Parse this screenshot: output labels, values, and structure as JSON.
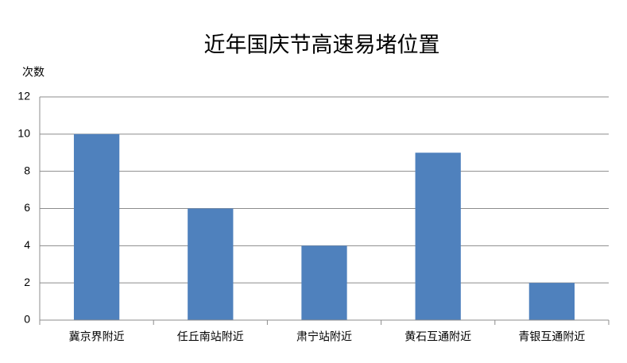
{
  "chart_data": {
    "type": "bar",
    "title": "近年国庆节高速易堵位置",
    "y_label": "次数",
    "categories": [
      "冀京界附近",
      "任丘南站附近",
      "肃宁站附近",
      "黄石互通附近",
      "青银互通附近"
    ],
    "values": [
      10,
      6,
      4,
      9,
      2
    ],
    "color": "#4f81bd",
    "ylim": [
      0,
      12
    ],
    "yticks": [
      0,
      2,
      4,
      6,
      8,
      10,
      12
    ],
    "grid": true
  }
}
